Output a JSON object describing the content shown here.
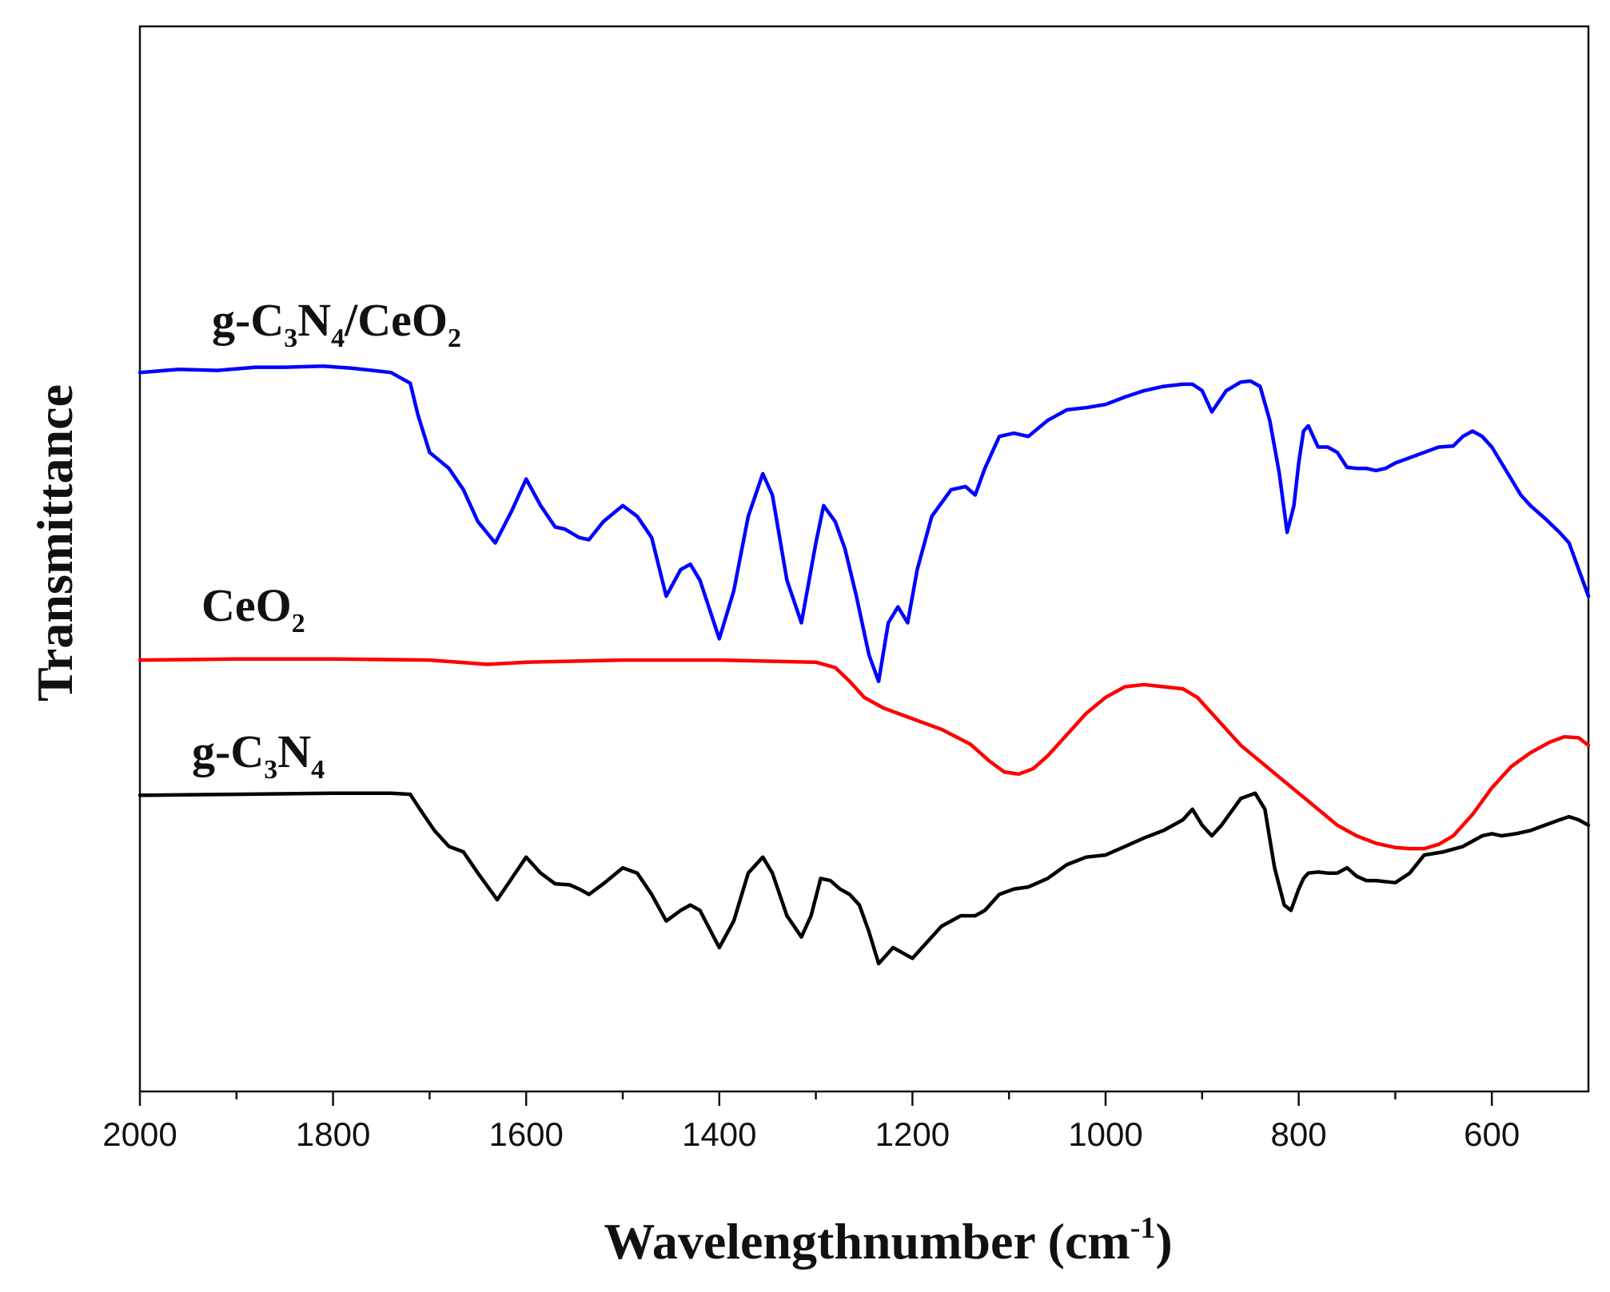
{
  "chart_data": {
    "type": "line",
    "title": "",
    "xlabel": "Wavelengthnumber (cm",
    "xlabel_sup": "-1",
    "xlabel_close": ")",
    "ylabel": "Transmittance",
    "xlim": [
      2000,
      500
    ],
    "x_reversed": true,
    "ylim": [
      0,
      100
    ],
    "y_ticks_shown": false,
    "grid": false,
    "x_ticks": [
      2000,
      1800,
      1600,
      1400,
      1200,
      1000,
      800,
      600
    ],
    "x_tick_labels": [
      "2000",
      "1800",
      "1600",
      "1400",
      "1200",
      "1000",
      "800",
      "600"
    ],
    "x_minor_ticks": [
      1900,
      1700,
      1500,
      1300,
      1100,
      900,
      700
    ],
    "series": [
      {
        "name": "g-C3N4/CeO2",
        "label_parts": [
          [
            "g-C",
            ""
          ],
          [
            "3",
            "sub"
          ],
          [
            "N",
            ""
          ],
          [
            "4",
            "sub"
          ],
          [
            "/CeO",
            ""
          ],
          [
            "2",
            "sub"
          ]
        ],
        "color": "#0000ff",
        "x": [
          2000,
          1960,
          1920,
          1880,
          1850,
          1810,
          1780,
          1740,
          1720,
          1712,
          1700,
          1680,
          1665,
          1650,
          1632,
          1615,
          1600,
          1585,
          1570,
          1560,
          1545,
          1535,
          1520,
          1500,
          1485,
          1470,
          1455,
          1440,
          1430,
          1420,
          1400,
          1385,
          1370,
          1355,
          1345,
          1330,
          1315,
          1300,
          1292,
          1280,
          1270,
          1258,
          1245,
          1235,
          1225,
          1215,
          1205,
          1195,
          1180,
          1160,
          1145,
          1135,
          1125,
          1110,
          1095,
          1080,
          1060,
          1040,
          1020,
          1000,
          980,
          960,
          940,
          920,
          910,
          900,
          890,
          875,
          860,
          850,
          840,
          830,
          820,
          812,
          805,
          800,
          795,
          790,
          780,
          770,
          760,
          750,
          740,
          730,
          720,
          710,
          700,
          685,
          670,
          655,
          640,
          630,
          620,
          610,
          600,
          590,
          580,
          570,
          560,
          545,
          530,
          520,
          510,
          500
        ],
        "y": [
          67.5,
          67.8,
          67.7,
          68.0,
          68.0,
          68.1,
          67.9,
          67.5,
          66.5,
          63.5,
          60.0,
          58.5,
          56.5,
          53.5,
          51.5,
          54.5,
          57.5,
          55.0,
          53.0,
          52.8,
          52.0,
          51.8,
          53.5,
          55.0,
          54.0,
          52.0,
          46.5,
          49.0,
          49.5,
          48.0,
          42.5,
          47.0,
          54.0,
          58.0,
          56.0,
          48.0,
          44.0,
          51.5,
          55.0,
          53.5,
          51.0,
          46.5,
          41.0,
          38.5,
          44.0,
          45.5,
          44.0,
          49.0,
          54.0,
          56.5,
          56.8,
          56.0,
          58.5,
          61.5,
          61.8,
          61.5,
          63.0,
          64.0,
          64.2,
          64.5,
          65.2,
          65.8,
          66.2,
          66.4,
          66.4,
          65.8,
          63.8,
          65.8,
          66.6,
          66.7,
          66.2,
          63.0,
          58.0,
          52.5,
          55.0,
          59.0,
          62.0,
          62.5,
          60.5,
          60.5,
          60.0,
          58.6,
          58.5,
          58.5,
          58.3,
          58.5,
          59.0,
          59.5,
          60.0,
          60.5,
          60.6,
          61.5,
          62.0,
          61.5,
          60.5,
          59.0,
          57.5,
          56.0,
          55.0,
          53.8,
          52.5,
          51.5,
          49.0,
          46.5
        ]
      },
      {
        "name": "CeO2",
        "label_parts": [
          [
            "CeO",
            ""
          ],
          [
            "2",
            "sub"
          ]
        ],
        "color": "#ff0000",
        "x": [
          2000,
          1900,
          1800,
          1700,
          1640,
          1600,
          1500,
          1400,
          1300,
          1280,
          1265,
          1250,
          1230,
          1200,
          1170,
          1140,
          1120,
          1105,
          1090,
          1075,
          1060,
          1040,
          1020,
          1000,
          980,
          960,
          940,
          920,
          905,
          880,
          860,
          840,
          820,
          800,
          780,
          760,
          740,
          720,
          700,
          685,
          670,
          655,
          640,
          620,
          600,
          580,
          560,
          540,
          525,
          510,
          500
        ],
        "y": [
          40.5,
          40.6,
          40.6,
          40.5,
          40.1,
          40.3,
          40.5,
          40.5,
          40.3,
          39.8,
          38.5,
          37.0,
          36.0,
          35.0,
          34.0,
          32.6,
          31.0,
          30.0,
          29.8,
          30.3,
          31.5,
          33.5,
          35.5,
          37.0,
          38.0,
          38.2,
          38.0,
          37.8,
          37.0,
          34.5,
          32.5,
          31.0,
          29.5,
          28.0,
          26.5,
          25.0,
          24.0,
          23.3,
          22.9,
          22.8,
          22.8,
          23.2,
          24.0,
          26.0,
          28.5,
          30.5,
          31.8,
          32.8,
          33.3,
          33.2,
          32.5
        ]
      },
      {
        "name": "g-C3N4",
        "label_parts": [
          [
            "g-C",
            ""
          ],
          [
            "3",
            "sub"
          ],
          [
            "N",
            ""
          ],
          [
            "4",
            "sub"
          ]
        ],
        "color": "#000000",
        "x": [
          2000,
          1900,
          1800,
          1740,
          1720,
          1710,
          1695,
          1680,
          1665,
          1650,
          1630,
          1615,
          1600,
          1585,
          1570,
          1555,
          1545,
          1535,
          1520,
          1500,
          1485,
          1470,
          1455,
          1440,
          1430,
          1420,
          1400,
          1385,
          1370,
          1355,
          1345,
          1330,
          1315,
          1305,
          1295,
          1285,
          1275,
          1265,
          1255,
          1245,
          1235,
          1220,
          1210,
          1200,
          1185,
          1170,
          1150,
          1135,
          1125,
          1110,
          1095,
          1080,
          1060,
          1040,
          1020,
          1000,
          980,
          960,
          940,
          920,
          910,
          900,
          890,
          880,
          860,
          845,
          835,
          825,
          815,
          808,
          800,
          795,
          790,
          780,
          770,
          760,
          750,
          740,
          730,
          720,
          700,
          685,
          670,
          650,
          630,
          610,
          600,
          590,
          575,
          560,
          545,
          530,
          520,
          510,
          500
        ],
        "y": [
          27.8,
          27.9,
          28.0,
          28.0,
          27.9,
          26.5,
          24.5,
          23.0,
          22.5,
          20.5,
          18.0,
          20.0,
          22.0,
          20.5,
          19.5,
          19.4,
          19.0,
          18.5,
          19.5,
          21.0,
          20.5,
          18.5,
          16.0,
          17.0,
          17.5,
          17.0,
          13.5,
          16.0,
          20.5,
          22.0,
          20.5,
          16.5,
          14.5,
          16.5,
          20.0,
          19.8,
          19.0,
          18.5,
          17.5,
          15.0,
          12.0,
          13.5,
          13.0,
          12.5,
          14.0,
          15.5,
          16.5,
          16.5,
          17.0,
          18.5,
          19.0,
          19.2,
          20.0,
          21.3,
          22.0,
          22.2,
          23.0,
          23.8,
          24.5,
          25.5,
          26.5,
          25.0,
          24.0,
          25.0,
          27.5,
          28.0,
          26.5,
          21.0,
          17.5,
          17.0,
          19.0,
          20.0,
          20.5,
          20.6,
          20.5,
          20.5,
          21.0,
          20.2,
          19.8,
          19.8,
          19.6,
          20.5,
          22.2,
          22.5,
          23.0,
          24.0,
          24.2,
          24.0,
          24.2,
          24.5,
          25.0,
          25.5,
          25.8,
          25.5,
          25.0
        ]
      }
    ]
  }
}
